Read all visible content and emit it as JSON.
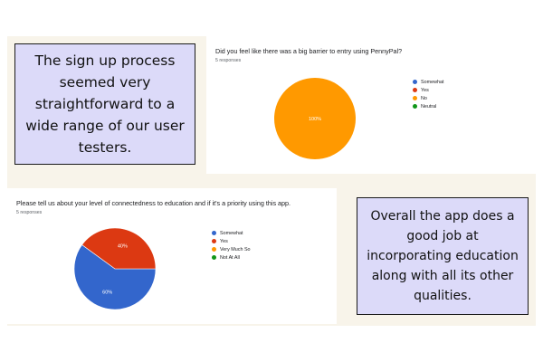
{
  "notes": {
    "left_text": "The sign up process seemed very straightforward to a wide range of our user testers.",
    "right_text": "Overall the app does a good job at incorporating education along with all its other qualities."
  },
  "chart_data": [
    {
      "type": "pie",
      "title": "Did you feel like there was a big barrier to entry using PennyPal?",
      "subtitle": "5 responses",
      "categories": [
        "Somewhat",
        "Yes",
        "No",
        "Neutral"
      ],
      "values": [
        0,
        0,
        100,
        0
      ],
      "colors": [
        "#3366cc",
        "#dc3912",
        "#ff9900",
        "#109618"
      ],
      "legend_position": "right"
    },
    {
      "type": "pie",
      "title": "Please tell us about your level of connectedness to education and if it's a priority using this app.",
      "subtitle": "5 responses",
      "categories": [
        "Somewhat",
        "Yes",
        "Very Much So",
        "Not At All"
      ],
      "values": [
        60,
        40,
        0,
        0
      ],
      "colors": [
        "#3366cc",
        "#dc3912",
        "#ff9900",
        "#109618"
      ],
      "legend_position": "right"
    }
  ]
}
